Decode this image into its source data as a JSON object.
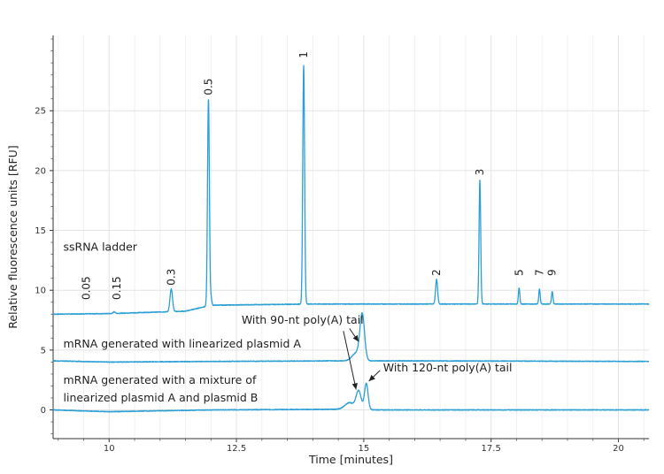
{
  "chart_data": {
    "type": "line",
    "xlabel": "Time [minutes]",
    "ylabel": "Relative fluorescence units [RFU]",
    "xlim": [
      8.9,
      20.6
    ],
    "ylim": [
      -2.4,
      31.3
    ],
    "xticks": [
      10,
      12.5,
      15,
      17.5,
      20
    ],
    "xtick_labels": [
      "10",
      "12.5",
      "15",
      "17.5",
      "20"
    ],
    "yticks": [
      0,
      5,
      10,
      15,
      20,
      25
    ],
    "ytick_labels": [
      "0",
      "5",
      "10",
      "15",
      "20",
      "25"
    ],
    "grid": true,
    "line_color": "#2b9fd6",
    "series": [
      {
        "name": "ssRNA ladder",
        "baseline": [
          [
            8.9,
            8.0
          ],
          [
            10.0,
            8.05
          ],
          [
            11.5,
            8.25
          ],
          [
            11.85,
            8.6
          ],
          [
            12.05,
            8.75
          ],
          [
            13.0,
            8.8
          ],
          [
            14.0,
            8.85
          ],
          [
            16.0,
            8.85
          ],
          [
            20.6,
            8.85
          ]
        ],
        "peaks": [
          {
            "x": 10.1,
            "height": 8.2,
            "width": 0.02
          },
          {
            "x": 11.22,
            "height": 10.1,
            "width": 0.025
          },
          {
            "x": 11.95,
            "height": 26.0,
            "width": 0.018
          },
          {
            "x": 12.0,
            "height": 9.4,
            "width": 0.015
          },
          {
            "x": 13.82,
            "height": 28.8,
            "width": 0.018
          },
          {
            "x": 16.43,
            "height": 10.9,
            "width": 0.02
          },
          {
            "x": 17.28,
            "height": 19.2,
            "width": 0.016
          },
          {
            "x": 18.05,
            "height": 10.2,
            "width": 0.014
          },
          {
            "x": 18.45,
            "height": 10.1,
            "width": 0.014
          },
          {
            "x": 18.7,
            "height": 9.9,
            "width": 0.014
          }
        ]
      },
      {
        "name": "mRNA generated with linearized plasmid A",
        "baseline": [
          [
            8.9,
            4.1
          ],
          [
            10.0,
            4.0
          ],
          [
            12.0,
            4.05
          ],
          [
            14.5,
            4.1
          ],
          [
            16.0,
            4.1
          ],
          [
            20.6,
            4.05
          ]
        ],
        "peaks": [
          {
            "x": 14.85,
            "height": 4.75,
            "width": 0.08
          },
          {
            "x": 14.97,
            "height": 7.9,
            "width": 0.045
          }
        ]
      },
      {
        "name": "mRNA generated with a mixture of linearized plasmid A and plasmid B",
        "baseline": [
          [
            8.9,
            0.0
          ],
          [
            10.0,
            -0.15
          ],
          [
            12.0,
            0.0
          ],
          [
            14.5,
            0.05
          ],
          [
            15.2,
            0.0
          ],
          [
            20.6,
            0.0
          ]
        ],
        "peaks": [
          {
            "x": 14.72,
            "height": 0.6,
            "width": 0.09
          },
          {
            "x": 14.9,
            "height": 1.55,
            "width": 0.05
          },
          {
            "x": 15.05,
            "height": 2.2,
            "width": 0.035
          }
        ]
      }
    ],
    "peak_labels": [
      {
        "text": "0.05",
        "x": 9.55,
        "y": 9.2
      },
      {
        "text": "0.15",
        "x": 10.15,
        "y": 9.2
      },
      {
        "text": "0.3",
        "x": 11.22,
        "y": 10.4
      },
      {
        "text": "0.5",
        "x": 11.95,
        "y": 26.3
      },
      {
        "text": "1",
        "x": 13.82,
        "y": 29.4
      },
      {
        "text": "2",
        "x": 16.43,
        "y": 11.2
      },
      {
        "text": "3",
        "x": 17.28,
        "y": 19.6
      },
      {
        "text": "5",
        "x": 18.05,
        "y": 11.2
      },
      {
        "text": "7",
        "x": 18.45,
        "y": 11.2
      },
      {
        "text": "9",
        "x": 18.7,
        "y": 11.2
      }
    ],
    "annotations": [
      {
        "text": "ssRNA ladder",
        "x": 9.1,
        "y": 13.3
      },
      {
        "text": "mRNA generated with linearized plasmid A",
        "x": 9.1,
        "y": 5.2
      },
      {
        "text": "mRNA generated with a mixture of",
        "x": 9.1,
        "y": 2.2
      },
      {
        "text": "linearized plasmid A and plasmid B",
        "x": 9.1,
        "y": 0.7
      },
      {
        "text": "With 90-nt poly(A) tail",
        "x": 12.6,
        "y": 7.2
      },
      {
        "text": "With 120-nt poly(A) tail",
        "x": 15.38,
        "y": 3.2
      }
    ],
    "arrows": [
      {
        "from": [
          14.72,
          6.8
        ],
        "to": [
          14.9,
          5.7
        ]
      },
      {
        "from": [
          14.6,
          6.6
        ],
        "to": [
          14.85,
          1.7
        ]
      },
      {
        "from": [
          15.32,
          3.3
        ],
        "to": [
          15.1,
          2.4
        ]
      }
    ]
  }
}
